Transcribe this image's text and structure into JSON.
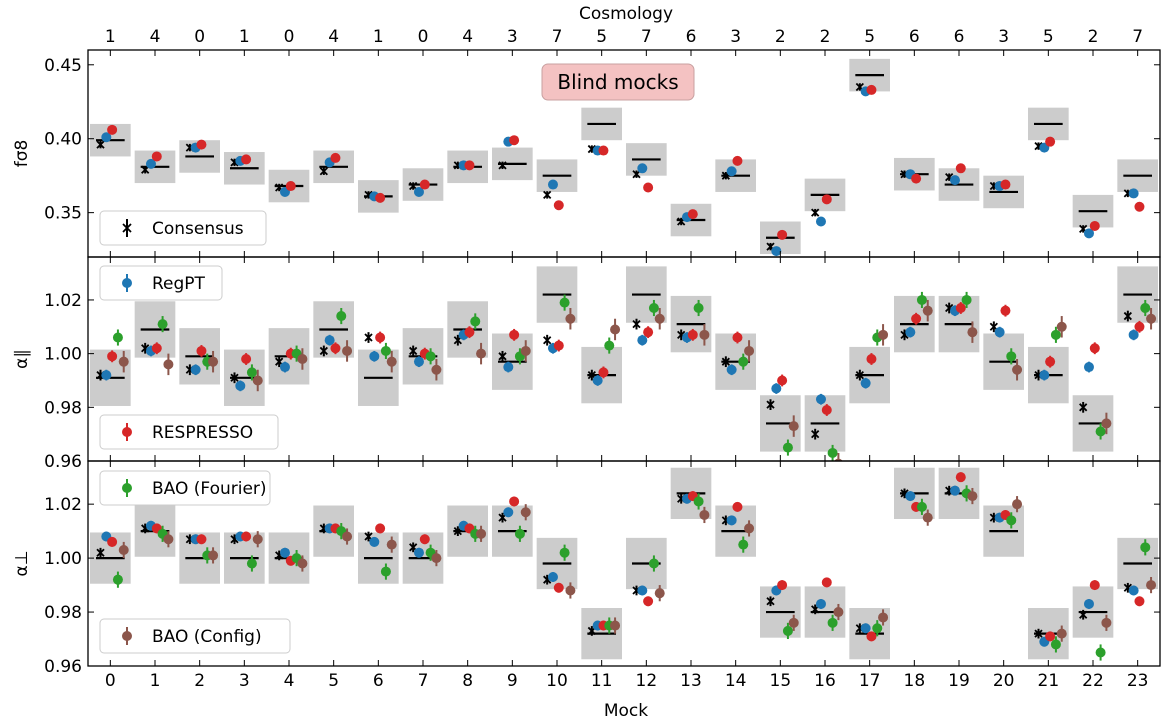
{
  "chart_data": {
    "type": "scatter",
    "xlabel": "Mock",
    "top_axis_label": "Cosmology",
    "mocks": [
      0,
      1,
      2,
      3,
      4,
      5,
      6,
      7,
      8,
      9,
      10,
      11,
      12,
      13,
      14,
      15,
      16,
      17,
      18,
      19,
      20,
      21,
      22,
      23
    ],
    "cosmology": [
      1,
      4,
      0,
      1,
      0,
      4,
      1,
      0,
      4,
      3,
      7,
      5,
      7,
      6,
      3,
      2,
      2,
      5,
      6,
      6,
      3,
      5,
      2,
      7
    ],
    "annotation": "Blind mocks",
    "legend": [
      {
        "key": "consensus",
        "label": "Consensus",
        "color": "#000000",
        "marker": "x"
      },
      {
        "key": "regpt",
        "label": "RegPT",
        "color": "#1f77b4",
        "marker": "o"
      },
      {
        "key": "respresso",
        "label": "RESPRESSO",
        "color": "#d62728",
        "marker": "o"
      },
      {
        "key": "bao_fourier",
        "label": "BAO (Fourier)",
        "color": "#2ca02c",
        "marker": "o"
      },
      {
        "key": "bao_config",
        "label": "BAO (Config)",
        "color": "#8c564b",
        "marker": "o"
      }
    ],
    "panels": [
      {
        "ylabel": "fσ8",
        "ylim": [
          0.32,
          0.46
        ],
        "yticks": [
          "0.35",
          "0.40",
          "0.45"
        ],
        "ytick_values": [
          0.35,
          0.4,
          0.45
        ],
        "truth": [
          0.399,
          0.381,
          0.388,
          0.38,
          0.368,
          0.381,
          0.361,
          0.369,
          0.381,
          0.383,
          0.375,
          0.41,
          0.386,
          0.345,
          0.375,
          0.333,
          0.362,
          0.443,
          0.376,
          0.369,
          0.364,
          0.41,
          0.351,
          0.375
        ],
        "band": 0.011,
        "series": {
          "consensus": {
            "y": [
              0.396,
              0.379,
              0.394,
              0.384,
              0.367,
              0.378,
              0.362,
              0.368,
              0.382,
              0.382,
              0.362,
              0.393,
              0.376,
              0.344,
              0.375,
              0.327,
              0.35,
              0.435,
              0.376,
              0.374,
              0.368,
              0.395,
              0.339,
              0.363
            ],
            "err": 0.0025
          },
          "regpt": {
            "y": [
              0.401,
              0.383,
              0.394,
              0.385,
              0.364,
              0.384,
              0.361,
              0.364,
              0.382,
              0.398,
              0.369,
              0.392,
              0.38,
              0.347,
              0.378,
              0.324,
              0.344,
              0.432,
              0.376,
              0.372,
              0.368,
              0.394,
              0.336,
              0.363
            ],
            "err": 0.002
          },
          "respresso": {
            "y": [
              0.406,
              0.388,
              0.396,
              0.386,
              0.368,
              0.387,
              0.36,
              0.369,
              0.382,
              0.399,
              0.355,
              0.392,
              0.367,
              0.349,
              0.385,
              0.335,
              0.359,
              0.433,
              0.373,
              0.38,
              0.369,
              0.398,
              0.341,
              0.354
            ],
            "err": 0.002
          }
        }
      },
      {
        "ylabel": "α∥",
        "ylim": [
          0.96,
          1.036
        ],
        "yticks": [
          "0.96",
          "0.98",
          "1.00",
          "1.02"
        ],
        "ytick_values": [
          0.96,
          0.98,
          1.0,
          1.02
        ],
        "truth": [
          0.991,
          1.009,
          0.999,
          0.991,
          0.999,
          1.009,
          0.991,
          0.999,
          1.009,
          0.997,
          1.022,
          0.992,
          1.022,
          1.011,
          0.997,
          0.974,
          0.974,
          0.992,
          1.011,
          1.011,
          0.997,
          0.992,
          0.974,
          1.022
        ],
        "band": 0.0105,
        "series": {
          "consensus": {
            "y": [
              0.992,
              1.002,
              0.994,
              0.991,
              0.997,
              1.001,
              1.006,
              1.001,
              1.005,
              0.999,
              1.005,
              0.992,
              1.011,
              1.007,
              0.997,
              0.981,
              0.97,
              0.992,
              1.007,
              1.017,
              1.01,
              0.992,
              0.98,
              1.014
            ],
            "err": 0.002
          },
          "regpt": {
            "y": [
              0.992,
              1.001,
              0.994,
              0.988,
              0.995,
              1.005,
              0.999,
              0.997,
              1.007,
              0.995,
              1.002,
              0.99,
              1.005,
              1.006,
              0.994,
              0.987,
              0.983,
              0.989,
              1.008,
              1.016,
              1.008,
              0.992,
              0.995,
              1.007
            ],
            "err": 0.002
          },
          "respresso": {
            "y": [
              0.999,
              1.002,
              1.001,
              0.998,
              1.0,
              1.002,
              1.006,
              1.0,
              1.008,
              1.007,
              1.003,
              0.993,
              1.008,
              1.007,
              1.006,
              0.99,
              0.979,
              0.998,
              1.013,
              1.017,
              1.016,
              0.997,
              1.002,
              1.01
            ],
            "err": 0.0022
          },
          "bao_fourier": {
            "y": [
              1.006,
              1.011,
              0.997,
              0.993,
              1.0,
              1.014,
              1.001,
              0.999,
              1.012,
              0.999,
              1.019,
              1.003,
              1.017,
              1.017,
              0.997,
              0.965,
              0.963,
              1.006,
              1.02,
              1.02,
              0.999,
              1.007,
              0.971,
              1.017
            ],
            "err": 0.003
          },
          "bao_config": {
            "y": [
              0.997,
              0.996,
              0.997,
              0.99,
              0.998,
              1.001,
              0.997,
              0.994,
              1.0,
              1.001,
              1.013,
              1.009,
              1.013,
              1.007,
              1.001,
              0.973,
              0.959,
              1.007,
              1.016,
              1.008,
              0.994,
              1.01,
              0.974,
              1.013
            ],
            "err": 0.004
          }
        }
      },
      {
        "ylabel": "α⊥",
        "ylim": [
          0.96,
          1.036
        ],
        "yticks": [
          "0.96",
          "0.98",
          "1.00",
          "1.02"
        ],
        "ytick_values": [
          0.96,
          0.98,
          1.0,
          1.02
        ],
        "truth": [
          1.0,
          1.01,
          1.0,
          1.0,
          1.0,
          1.01,
          1.0,
          1.0,
          1.01,
          1.01,
          0.998,
          0.972,
          0.998,
          1.024,
          1.01,
          0.98,
          0.98,
          0.972,
          1.024,
          1.024,
          1.01,
          0.972,
          0.98,
          0.998
        ],
        "band": 0.0095,
        "series": {
          "consensus": {
            "y": [
              1.002,
              1.011,
              1.007,
              1.007,
              1.001,
              1.011,
              1.008,
              1.004,
              1.01,
              1.015,
              0.992,
              0.973,
              0.988,
              1.022,
              1.014,
              0.984,
              0.981,
              0.974,
              1.024,
              1.025,
              1.015,
              0.972,
              0.979,
              0.989
            ],
            "err": 0.0018
          },
          "regpt": {
            "y": [
              1.008,
              1.012,
              1.007,
              1.008,
              1.002,
              1.011,
              1.006,
              1.002,
              1.012,
              1.017,
              0.993,
              0.975,
              0.988,
              1.022,
              1.014,
              0.988,
              0.983,
              0.974,
              1.023,
              1.025,
              1.015,
              0.969,
              0.983,
              0.988
            ],
            "err": 0.0018
          },
          "respresso": {
            "y": [
              1.006,
              1.011,
              1.007,
              1.008,
              0.999,
              1.011,
              1.011,
              1.007,
              1.011,
              1.021,
              0.989,
              0.975,
              0.984,
              1.023,
              1.019,
              0.99,
              0.991,
              0.971,
              1.019,
              1.03,
              1.016,
              0.971,
              0.99,
              0.984
            ],
            "err": 0.0018
          },
          "bao_fourier": {
            "y": [
              0.992,
              1.009,
              1.001,
              0.998,
              1.0,
              1.01,
              0.995,
              1.002,
              1.009,
              1.009,
              1.002,
              0.975,
              0.998,
              1.021,
              1.005,
              0.973,
              0.976,
              0.974,
              1.019,
              1.024,
              1.014,
              0.968,
              0.965,
              1.004
            ],
            "err": 0.003
          },
          "bao_config": {
            "y": [
              1.003,
              1.007,
              1.001,
              1.007,
              0.998,
              1.008,
              1.005,
              1.0,
              1.009,
              1.017,
              0.988,
              0.975,
              0.987,
              1.016,
              1.011,
              0.976,
              0.98,
              0.978,
              1.015,
              1.023,
              1.02,
              0.972,
              0.976,
              0.99
            ],
            "err": 0.003
          }
        }
      }
    ]
  }
}
